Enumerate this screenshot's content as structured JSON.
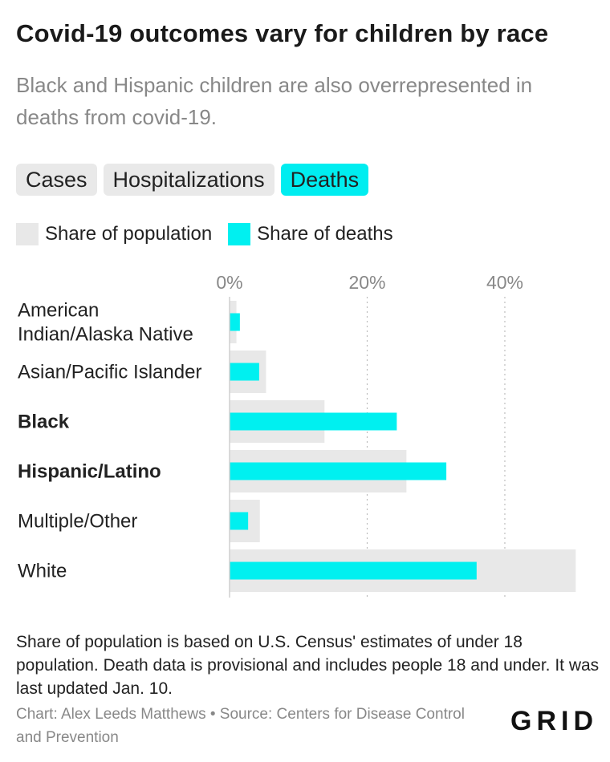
{
  "header": {
    "title": "Covid-19 outcomes vary for children by race",
    "subtitle": "Black and Hispanic children are also overrepresented in deaths from covid-19."
  },
  "tabs": [
    {
      "label": "Cases",
      "active": false
    },
    {
      "label": "Hospitalizations",
      "active": false
    },
    {
      "label": "Deaths",
      "active": true
    }
  ],
  "legend": {
    "population_label": "Share of population",
    "deaths_label": "Share of deaths"
  },
  "colors": {
    "population": "#e8e8e8",
    "deaths": "#00f0f0",
    "grid": "#bdbdbd",
    "tab_active": "#00edf0"
  },
  "chart_data": {
    "type": "bar",
    "orientation": "horizontal",
    "categories": [
      {
        "lines": [
          "American",
          "Indian/Alaska Native"
        ],
        "bold": false
      },
      {
        "lines": [
          "Asian/Pacific Islander"
        ],
        "bold": false
      },
      {
        "lines": [
          "Black"
        ],
        "bold": true
      },
      {
        "lines": [
          "Hispanic/Latino"
        ],
        "bold": true
      },
      {
        "lines": [
          "Multiple/Other"
        ],
        "bold": false
      },
      {
        "lines": [
          "White"
        ],
        "bold": false
      }
    ],
    "series": [
      {
        "name": "Share of population",
        "values": [
          1,
          5.3,
          13.8,
          25.7,
          4.4,
          50.3
        ]
      },
      {
        "name": "Share of deaths",
        "values": [
          1.5,
          4.3,
          24.3,
          31.5,
          2.7,
          35.9
        ]
      }
    ],
    "xticks": [
      "0%",
      "20%",
      "40%"
    ],
    "xtick_values": [
      0,
      20,
      40
    ],
    "xlim": [
      0,
      50.5
    ],
    "grid": true,
    "legend_position": "top-left"
  },
  "footer": {
    "note": "Share of population is based on U.S. Census' estimates of under 18 population. Death data is provisional and includes people 18 and under. It was last updated Jan. 10.",
    "credit": "Chart: Alex Leeds Matthews • Source: Centers for Disease Control and Prevention",
    "logo": "GRID"
  }
}
